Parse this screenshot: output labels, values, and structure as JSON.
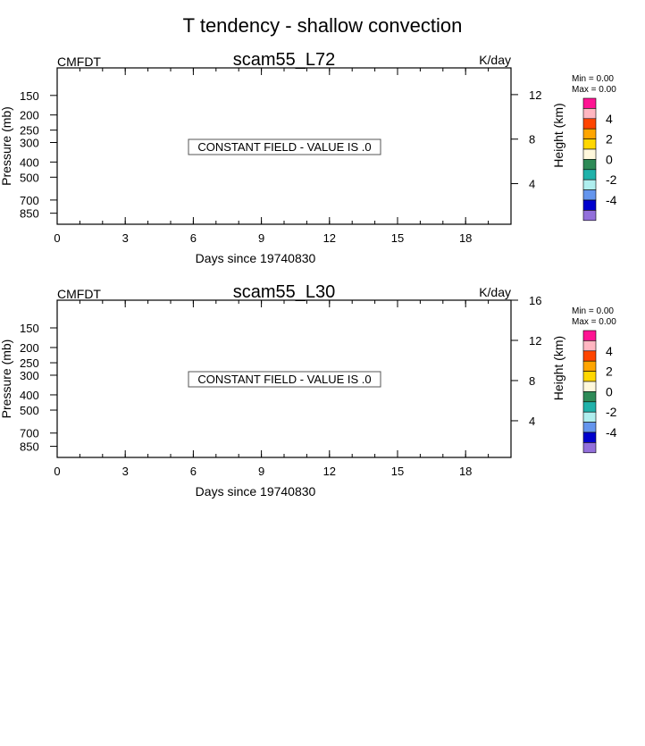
{
  "main_title": "T tendency - shallow convection",
  "chart_data": [
    {
      "type": "heatmap",
      "title": "scam55_L72",
      "left_label": "CMFDT",
      "units": "K/day",
      "xlabel": "Days since 19740830",
      "ylabel": "Pressure (mb)",
      "ylabel_right": "Height (km)",
      "xlim": [
        0,
        20
      ],
      "x_ticks": [
        0,
        3,
        6,
        9,
        12,
        15,
        18
      ],
      "x_minor_step": 1,
      "pressure_ticks": [
        150,
        200,
        250,
        300,
        400,
        500,
        700,
        850
      ],
      "pressure_range": [
        100,
        1000
      ],
      "height_ticks": [
        4,
        8,
        12
      ],
      "constant_field_message": "CONSTANT FIELD - VALUE IS .0",
      "min_label": "Min =   0.00",
      "max_label": "Max =   0.00",
      "colorbar_labels": [
        "4",
        "2",
        "0",
        "-2",
        "-4"
      ],
      "colorbar_colors": [
        "#ff1493",
        "#ffb6c1",
        "#ff4500",
        "#ffa500",
        "#ffd700",
        "#fff8dc",
        "#2e8b57",
        "#20b2aa",
        "#afeeee",
        "#6495ed",
        "#0000cd",
        "#9370db"
      ]
    },
    {
      "type": "heatmap",
      "title": "scam55_L30",
      "left_label": "CMFDT",
      "units": "K/day",
      "xlabel": "Days since 19740830",
      "ylabel": "Pressure (mb)",
      "ylabel_right": "Height (km)",
      "xlim": [
        0,
        20
      ],
      "x_ticks": [
        0,
        3,
        6,
        9,
        12,
        15,
        18
      ],
      "x_minor_step": 1,
      "pressure_ticks": [
        150,
        200,
        250,
        300,
        400,
        500,
        700,
        850
      ],
      "pressure_range": [
        100,
        1000
      ],
      "height_ticks": [
        4,
        8,
        12,
        16
      ],
      "constant_field_message": "CONSTANT FIELD - VALUE IS .0",
      "min_label": "Min =   0.00",
      "max_label": "Max =   0.00",
      "colorbar_labels": [
        "4",
        "2",
        "0",
        "-2",
        "-4"
      ],
      "colorbar_colors": [
        "#ff1493",
        "#ffb6c1",
        "#ff4500",
        "#ffa500",
        "#ffd700",
        "#fff8dc",
        "#2e8b57",
        "#20b2aa",
        "#afeeee",
        "#6495ed",
        "#0000cd",
        "#9370db"
      ]
    }
  ]
}
